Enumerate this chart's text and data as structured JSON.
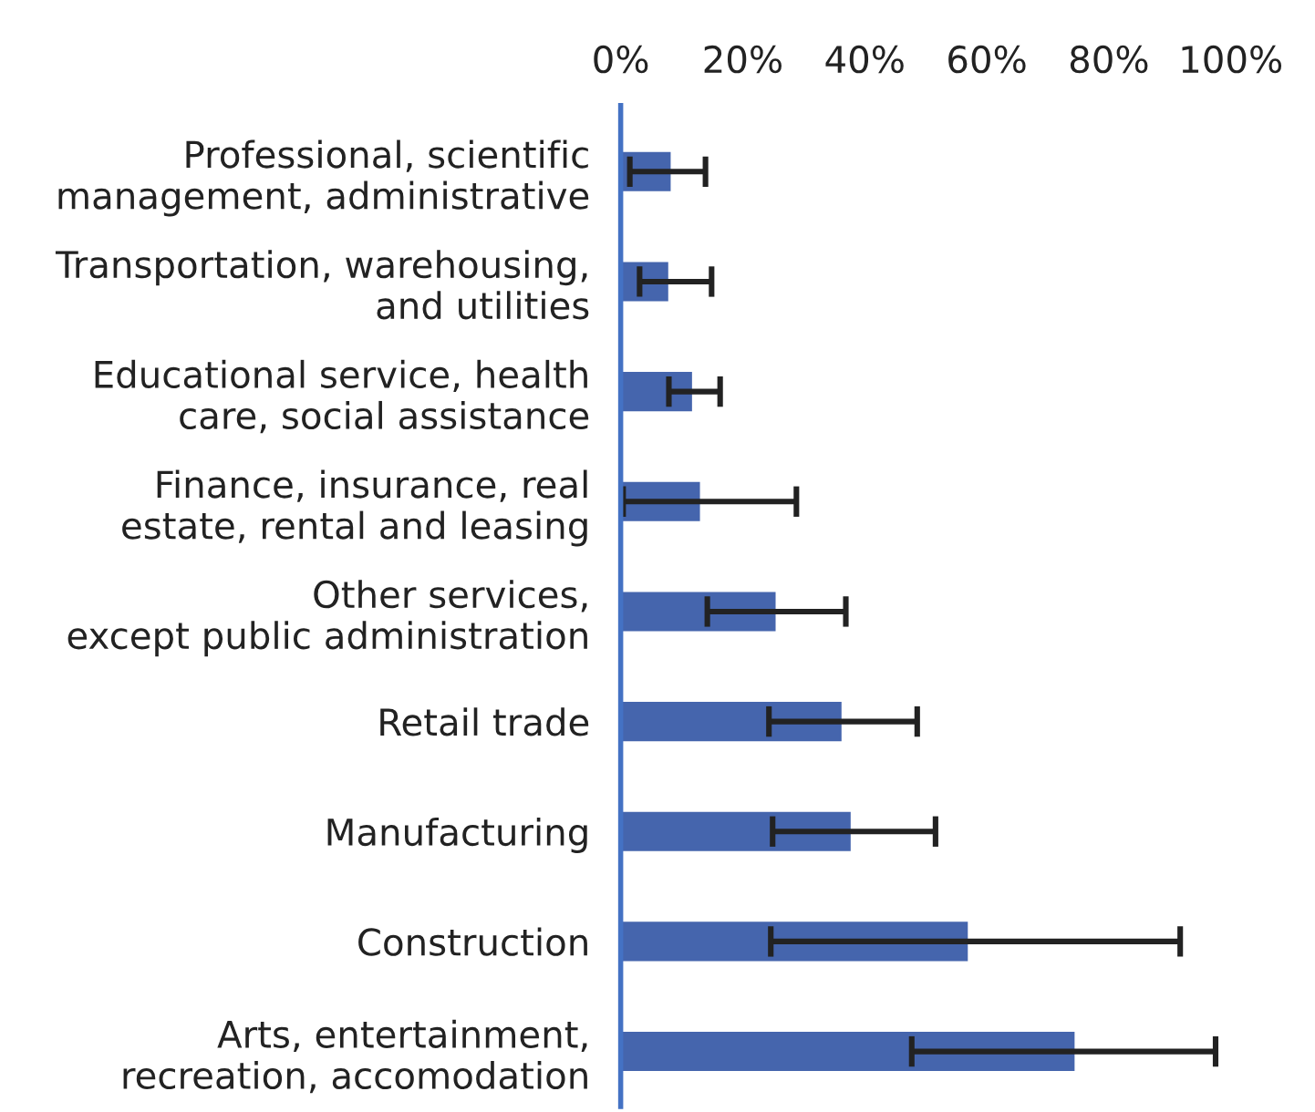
{
  "chart_data": {
    "type": "bar",
    "orientation": "horizontal",
    "categories": [
      "Professional, scientific\nmanagement, administrative",
      "Transportation, warehousing,\nand utilities",
      "Educational service, health\ncare, social assistance",
      "Finance, insurance, real\nestate, rental and leasing",
      "Other services,\nexcept public administration",
      "Retail trade",
      "Manufacturing",
      "Construction",
      "Arts, entertainment,\nrecreation, accomodation"
    ],
    "values": [
      8.4,
      8.0,
      11.9,
      13.2,
      25.6,
      36.4,
      37.9,
      57.1,
      74.6
    ],
    "errors": [
      [
        1.5,
        13.9
      ],
      [
        3.1,
        14.9
      ],
      [
        7.9,
        16.3
      ],
      [
        0.4,
        28.8
      ],
      [
        14.2,
        36.9
      ],
      [
        24.3,
        48.6
      ],
      [
        24.9,
        51.6
      ],
      [
        24.6,
        91.7
      ],
      [
        47.7,
        97.5
      ]
    ],
    "color": "#4565ad",
    "xlim": [
      0,
      100
    ],
    "xticks": [
      {
        "value": 0,
        "label": "0%"
      },
      {
        "value": 20,
        "label": "20%"
      },
      {
        "value": 40,
        "label": "40%"
      },
      {
        "value": 60,
        "label": "60%"
      },
      {
        "value": 80,
        "label": "80%"
      },
      {
        "value": 100,
        "label": "100%"
      }
    ],
    "grid": false
  }
}
